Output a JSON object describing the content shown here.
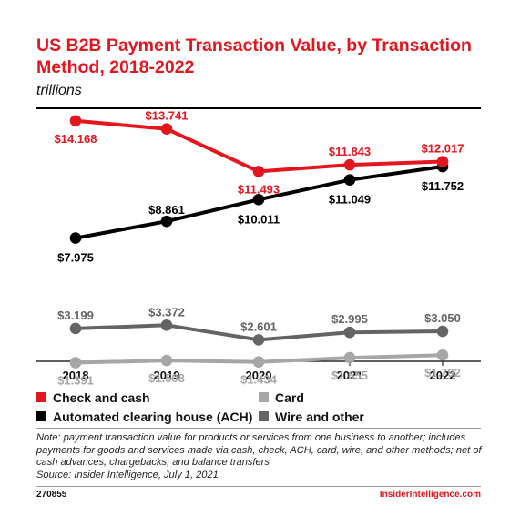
{
  "chart_data": {
    "type": "line",
    "title": "US B2B Payment Transaction Value, by Transaction Method, 2018-2022",
    "subtitle": "trillions",
    "x": [
      "2018",
      "2019",
      "2020",
      "2021",
      "2022"
    ],
    "ylim": [
      0,
      15
    ],
    "grid": false,
    "legend_position": "bottom",
    "series": [
      {
        "name": "Check and cash",
        "color": "#e4161d",
        "values": [
          14.168,
          13.741,
          11.493,
          11.843,
          12.017
        ],
        "labels": [
          "$14.168",
          "$13.741",
          "$11.493",
          "$11.843",
          "$12.017"
        ]
      },
      {
        "name": "Automated clearing house (ACH)",
        "color": "#000000",
        "values": [
          7.975,
          8.861,
          10.011,
          11.049,
          11.752
        ],
        "labels": [
          "$7.975",
          "$8.861",
          "$10.011",
          "$11.049",
          "$11.752"
        ]
      },
      {
        "name": "Card",
        "color": "#a6a6a6",
        "values": [
          1.391,
          1.508,
          1.434,
          1.655,
          1.792
        ],
        "labels": [
          "$1.391",
          "$1.508",
          "$1.434",
          "$1.655",
          "$1.792"
        ]
      },
      {
        "name": "Wire and other",
        "color": "#646464",
        "values": [
          3.199,
          3.372,
          2.601,
          2.995,
          3.05
        ],
        "labels": [
          "$3.199",
          "$3.372",
          "$2.601",
          "$2.995",
          "$3.050"
        ]
      }
    ]
  },
  "legend": {
    "check": "Check and cash",
    "card": "Card",
    "ach": "Automated clearing house (ACH)",
    "wire": "Wire and other"
  },
  "footer": {
    "note": "Note: payment transaction value for products or services from one business to another; includes payments for goods and services made via cash, check, ACH, card, wire, and other methods; net of cash advances, chargebacks, and balance transfers",
    "source": "Source: Insider Intelligence, July 1, 2021",
    "chart_id": "270855",
    "brand": "InsiderIntelligence.com"
  }
}
